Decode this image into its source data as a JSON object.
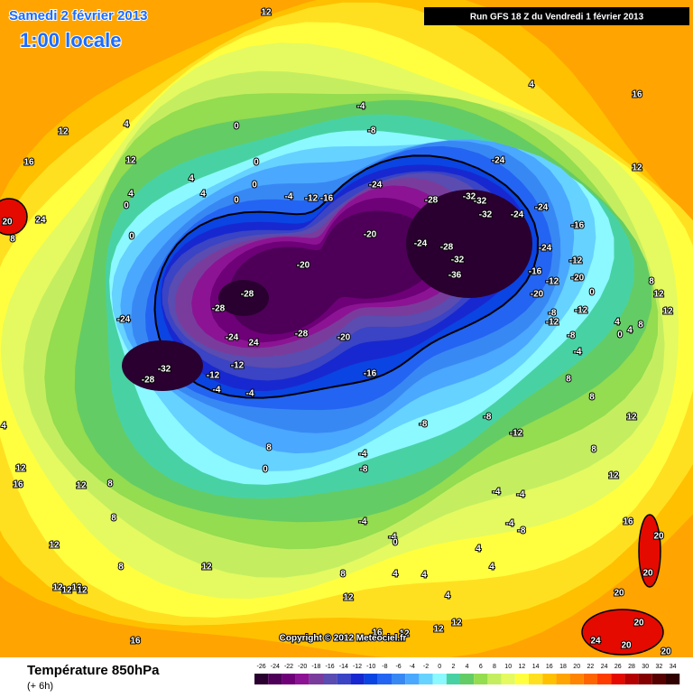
{
  "header": {
    "title": "Samedi 2 février 2013",
    "subtitle": "1:00 locale",
    "run": "Run GFS 18 Z du Vendredi 1 février 2013"
  },
  "map": {
    "copyright": "Copyright © 2012 Meteociel.fr",
    "contour_labels": [
      12,
      12,
      12,
      16,
      4,
      4,
      4,
      4,
      0,
      0,
      0,
      0,
      0,
      0,
      -4,
      -12,
      -16,
      -4,
      -8,
      -24,
      -28,
      -32,
      -32,
      -32,
      -24,
      -24,
      -24,
      -16,
      -20,
      -24,
      -28,
      -32,
      -36,
      -20,
      -28,
      -28,
      -24,
      -24,
      24,
      -28,
      -20,
      -32,
      -28,
      -12,
      -12,
      -4,
      -4,
      -16,
      -8,
      -8,
      -12,
      -24,
      -16,
      -20,
      -12,
      -20,
      -12,
      -12,
      0,
      -8,
      -12,
      -8,
      -4,
      4,
      0,
      4,
      8,
      8,
      12,
      12,
      12,
      16,
      4,
      8,
      8,
      12,
      8,
      12,
      16,
      20,
      20,
      20,
      20,
      24,
      20,
      20,
      -4,
      -4,
      -4,
      -8,
      -4,
      -8,
      -4,
      -4,
      0,
      8,
      12,
      4,
      4,
      4,
      4,
      4,
      16,
      12,
      12,
      12,
      16,
      12,
      12,
      12,
      12,
      12,
      12,
      8,
      8,
      8,
      12,
      12,
      16,
      4,
      8,
      0,
      20,
      24,
      8
    ]
  },
  "legend": {
    "title": "Température 850hPa",
    "lead": "(+ 6h)",
    "ticks": [
      -26,
      -24,
      -22,
      -20,
      -18,
      -16,
      -14,
      -12,
      -10,
      -8,
      -6,
      -4,
      -2,
      0,
      2,
      4,
      6,
      8,
      10,
      12,
      14,
      16,
      18,
      20,
      22,
      24,
      26,
      28,
      30,
      32,
      34
    ],
    "colors": [
      "#2a0030",
      "#4e0058",
      "#6e0078",
      "#8c1494",
      "#7a3c9c",
      "#5a4cb0",
      "#3a44c4",
      "#1828d0",
      "#0a44e2",
      "#2464f2",
      "#3888f4",
      "#4aa8ff",
      "#66d2ff",
      "#8cf8ff",
      "#48d2a4",
      "#64cc64",
      "#94dc50",
      "#c4ee60",
      "#e4fa60",
      "#ffff40",
      "#ffe020",
      "#ffc000",
      "#ffa400",
      "#ff8400",
      "#ff6400",
      "#ff3c00",
      "#e40a00",
      "#b40000",
      "#840000",
      "#560000",
      "#300000"
    ]
  }
}
